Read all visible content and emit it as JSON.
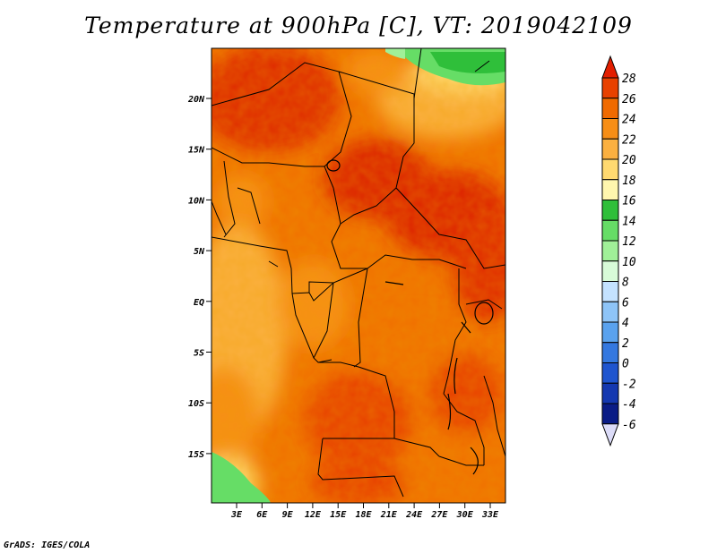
{
  "title": "Temperature at 900hPa [C], VT: 2019042109",
  "credit": "GrADS: IGES/COLA",
  "map": {
    "variable": "Temperature",
    "level": "900hPa",
    "units": "C",
    "valid_time": "2019042109",
    "lat_labels": [
      "20N",
      "15N",
      "10N",
      "5N",
      "EQ",
      "5S",
      "10S",
      "15S"
    ],
    "lon_labels": [
      "3E",
      "6E",
      "9E",
      "12E",
      "15E",
      "18E",
      "21E",
      "24E",
      "27E",
      "30E",
      "33E"
    ]
  },
  "colorbar": {
    "labels": [
      "28",
      "26",
      "24",
      "22",
      "20",
      "18",
      "16",
      "14",
      "12",
      "10",
      "8",
      "6",
      "4",
      "2",
      "0",
      "-2",
      "-4",
      "-6"
    ],
    "colors": [
      "#dd2200",
      "#e84100",
      "#f06a00",
      "#f78e16",
      "#fbb040",
      "#ffd970",
      "#fff6ae",
      "#2fbf3a",
      "#66dd66",
      "#a0f098",
      "#d8fbd8",
      "#c4e2ff",
      "#8ec4f7",
      "#5aa2ee",
      "#3478e0",
      "#1f55cf",
      "#1438b0",
      "#0a1c86",
      "#080850"
    ],
    "top_color": "#e21e00",
    "bottom_color": "#dcdcf8"
  }
}
